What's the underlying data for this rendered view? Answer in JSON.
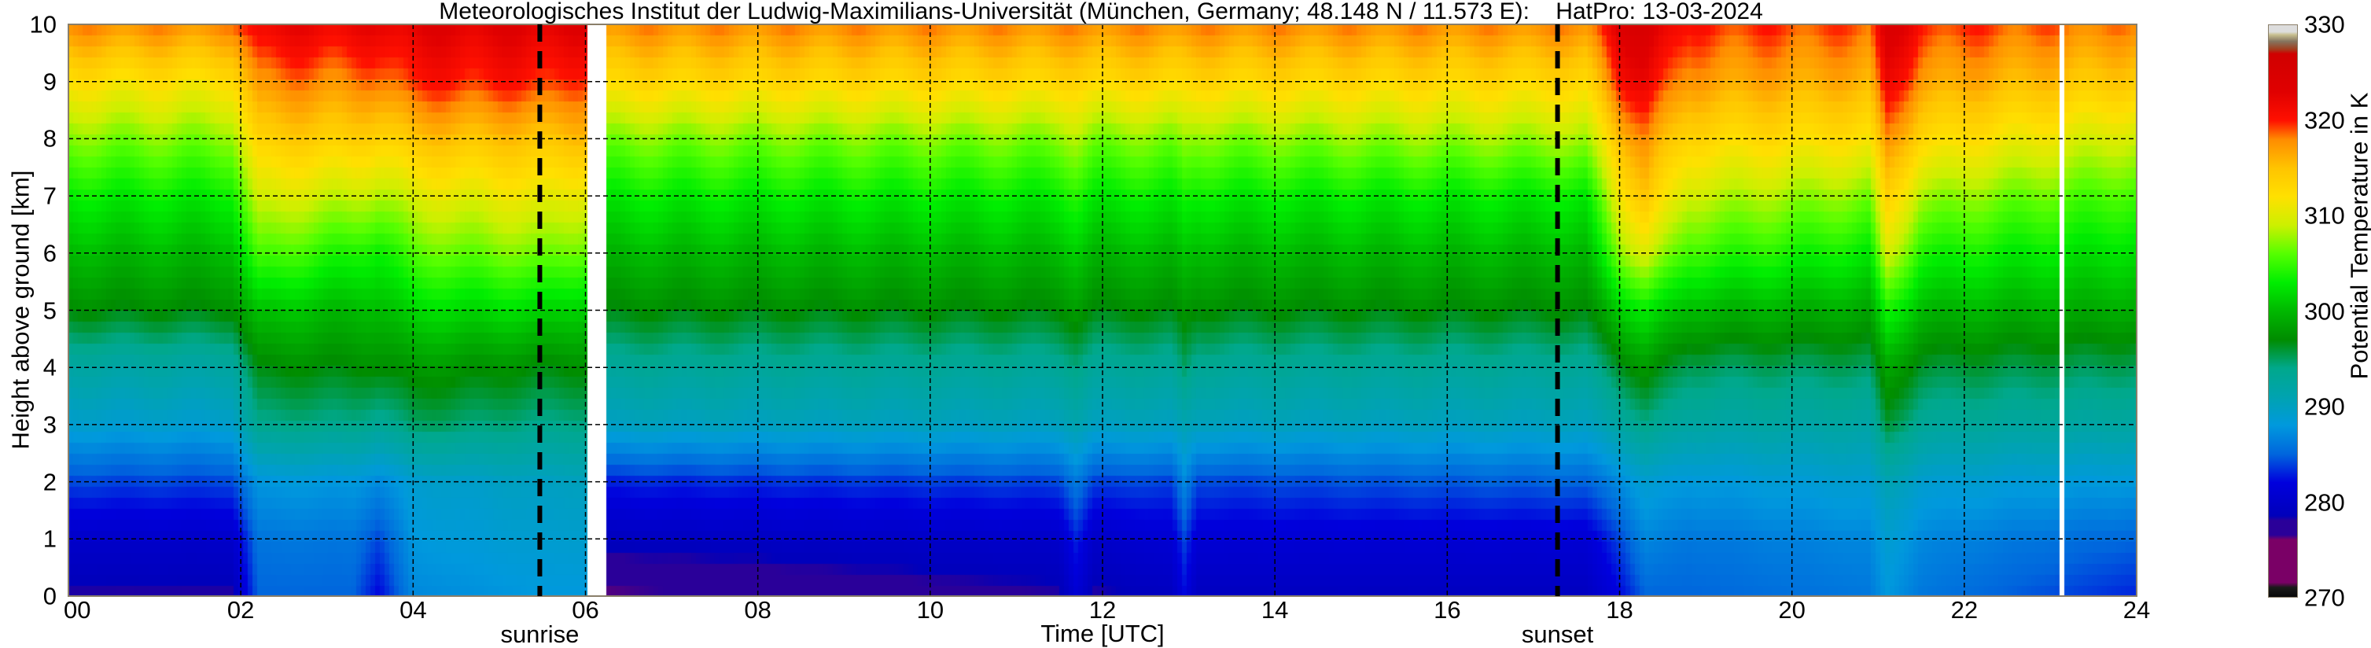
{
  "chart_data": {
    "type": "heatmap",
    "title": "Meteorologisches Institut der Ludwig-Maximilians-Universität (München, Germany; 48.148 N / 11.573 E):    HatPro: 13-03-2024",
    "xlabel": "Time [UTC]",
    "ylabel": "Height above ground [km]",
    "colorbar_label": "Potential Temperature in K",
    "xlim": [
      0,
      24
    ],
    "ylim": [
      0,
      10
    ],
    "clim": [
      270,
      330
    ],
    "grid": true,
    "x_ticks": [
      "00",
      "02",
      "04",
      "06",
      "08",
      "10",
      "12",
      "14",
      "16",
      "18",
      "20",
      "22",
      "24"
    ],
    "y_ticks": [
      "0",
      "1",
      "2",
      "3",
      "4",
      "5",
      "6",
      "7",
      "8",
      "9",
      "10"
    ],
    "colorbar_ticks": [
      "270",
      "280",
      "290",
      "300",
      "310",
      "320",
      "330"
    ],
    "annotations": [
      {
        "label": "sunrise",
        "time": 5.47
      },
      {
        "label": "sunset",
        "time": 17.28
      }
    ],
    "missing_data": [
      [
        6.0,
        6.22
      ],
      [
        23.13,
        23.18
      ]
    ],
    "profile_heights_km": [
      0,
      1,
      2,
      3,
      4,
      5,
      6,
      7,
      8,
      9,
      10
    ],
    "profiles": [
      {
        "time": 0.0,
        "theta": [
          278,
          280,
          284,
          289,
          292,
          297,
          300,
          303,
          307,
          312,
          318
        ]
      },
      {
        "time": 1.9,
        "theta": [
          278,
          280,
          284,
          289,
          292,
          297,
          300,
          303,
          307,
          312,
          318
        ]
      },
      {
        "time": 2.2,
        "theta": [
          285,
          286,
          288,
          294,
          297,
          301,
          306,
          310,
          314,
          318,
          322
        ]
      },
      {
        "time": 3.3,
        "theta": [
          285,
          286,
          288,
          294,
          297,
          300,
          304,
          309,
          314,
          318,
          322
        ]
      },
      {
        "time": 3.6,
        "theta": [
          282,
          284,
          287,
          293,
          297,
          300,
          303,
          308,
          313,
          318,
          322
        ]
      },
      {
        "time": 4.0,
        "theta": [
          287,
          288,
          289,
          295,
          298,
          302,
          306,
          310,
          315,
          320,
          323
        ]
      },
      {
        "time": 5.5,
        "theta": [
          288,
          289,
          290,
          294,
          297,
          302,
          307,
          311,
          315,
          320,
          323
        ]
      },
      {
        "time": 6.0,
        "theta": [
          288,
          289,
          290,
          294,
          297,
          301,
          306,
          310,
          315,
          319,
          323
        ]
      },
      {
        "time": 6.22,
        "theta": [
          276,
          279,
          283,
          290,
          293,
          297,
          300,
          303,
          307,
          313,
          318
        ]
      },
      {
        "time": 11.5,
        "theta": [
          278,
          280,
          284,
          290,
          293,
          297,
          300,
          303,
          307,
          313,
          318
        ]
      },
      {
        "time": 11.7,
        "theta": [
          281,
          283,
          286,
          291,
          294,
          298,
          301,
          304,
          308,
          313,
          318
        ]
      },
      {
        "time": 11.9,
        "theta": [
          278,
          280,
          284,
          290,
          293,
          297,
          300,
          303,
          307,
          313,
          318
        ]
      },
      {
        "time": 12.8,
        "theta": [
          279,
          281,
          284,
          290,
          293,
          297,
          300,
          303,
          307,
          313,
          318
        ]
      },
      {
        "time": 12.95,
        "theta": [
          282,
          284,
          287,
          291,
          295,
          298,
          301,
          304,
          308,
          313,
          318
        ]
      },
      {
        "time": 13.1,
        "theta": [
          279,
          281,
          284,
          290,
          293,
          297,
          300,
          303,
          307,
          313,
          318
        ]
      },
      {
        "time": 17.6,
        "theta": [
          279,
          281,
          285,
          290,
          293,
          297,
          300,
          303,
          308,
          313,
          318
        ]
      },
      {
        "time": 18.0,
        "theta": [
          282,
          284,
          287,
          292,
          296,
          301,
          307,
          311,
          315,
          320,
          323
        ]
      },
      {
        "time": 18.3,
        "theta": [
          285,
          287,
          289,
          294,
          298,
          303,
          310,
          315,
          318,
          322,
          325
        ]
      },
      {
        "time": 18.8,
        "theta": [
          285,
          286,
          288,
          292,
          295,
          300,
          305,
          309,
          313,
          317,
          320
        ]
      },
      {
        "time": 20.9,
        "theta": [
          286,
          287,
          289,
          292,
          295,
          299,
          303,
          307,
          312,
          316,
          319
        ]
      },
      {
        "time": 21.1,
        "theta": [
          288,
          289,
          291,
          296,
          299,
          304,
          310,
          314,
          318,
          322,
          325
        ]
      },
      {
        "time": 21.5,
        "theta": [
          286,
          287,
          289,
          293,
          296,
          300,
          304,
          308,
          313,
          317,
          320
        ]
      },
      {
        "time": 24.0,
        "theta": [
          283,
          285,
          288,
          292,
          295,
          299,
          302,
          305,
          309,
          314,
          318
        ]
      }
    ],
    "colormap": [
      {
        "v": 270,
        "c": "#0a0a0a"
      },
      {
        "v": 271,
        "c": "#1a1a1a"
      },
      {
        "v": 271.5,
        "c": "#7a0066"
      },
      {
        "v": 276,
        "c": "#7a0066"
      },
      {
        "v": 276.5,
        "c": "#2a0099"
      },
      {
        "v": 278,
        "c": "#2a0099"
      },
      {
        "v": 278.5,
        "c": "#0000bb"
      },
      {
        "v": 282,
        "c": "#0000dd"
      },
      {
        "v": 285,
        "c": "#0066dd"
      },
      {
        "v": 288,
        "c": "#0099dd"
      },
      {
        "v": 291,
        "c": "#00a3b0"
      },
      {
        "v": 294,
        "c": "#00a88c"
      },
      {
        "v": 297,
        "c": "#008c00"
      },
      {
        "v": 300,
        "c": "#00b800"
      },
      {
        "v": 303,
        "c": "#00ee00"
      },
      {
        "v": 306,
        "c": "#55ff00"
      },
      {
        "v": 309,
        "c": "#ccf000"
      },
      {
        "v": 312,
        "c": "#ffe000"
      },
      {
        "v": 315,
        "c": "#ffc400"
      },
      {
        "v": 318,
        "c": "#ff8c00"
      },
      {
        "v": 320,
        "c": "#ff1000"
      },
      {
        "v": 323,
        "c": "#e00000"
      },
      {
        "v": 327,
        "c": "#d00000"
      },
      {
        "v": 327.5,
        "c": "#a04020"
      },
      {
        "v": 328.3,
        "c": "#857560"
      },
      {
        "v": 329,
        "c": "#c8c090"
      },
      {
        "v": 329.3,
        "c": "#dddddd"
      },
      {
        "v": 330,
        "c": "#dddddd"
      }
    ]
  }
}
